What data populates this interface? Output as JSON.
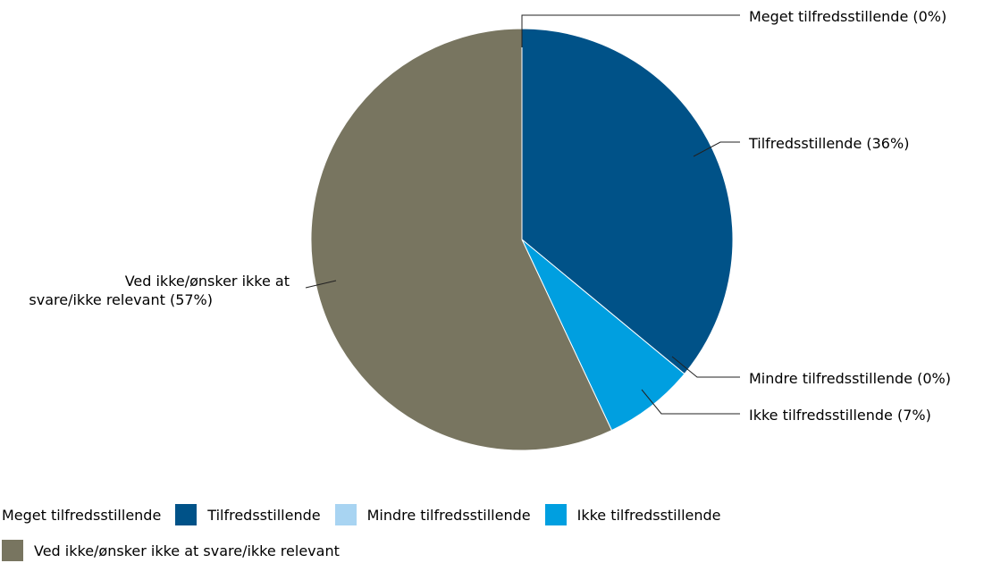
{
  "chart_data": {
    "type": "pie",
    "title": "",
    "categories": [
      "Meget tilfredsstillende",
      "Tilfredsstillende",
      "Mindre tilfredsstillende",
      "Ikke tilfredsstillende",
      "Ved ikke/ønsker ikke at svare/ikke relevant"
    ],
    "values": [
      0,
      36,
      0,
      7,
      57
    ],
    "data_labels": [
      "Meget tilfredsstillende (0%)",
      "Tilfredsstillende (36%)",
      "Mindre tilfredsstillende (0%)",
      "Ikke tilfredsstillende (7%)",
      "Ved ikke/ønsker ikke at svare/ikke relevant (57%)"
    ],
    "colors": [
      "#ffffff",
      "#005288",
      "#a8d4f2",
      "#009fe0",
      "#787560"
    ],
    "legend_position": "bottom"
  }
}
